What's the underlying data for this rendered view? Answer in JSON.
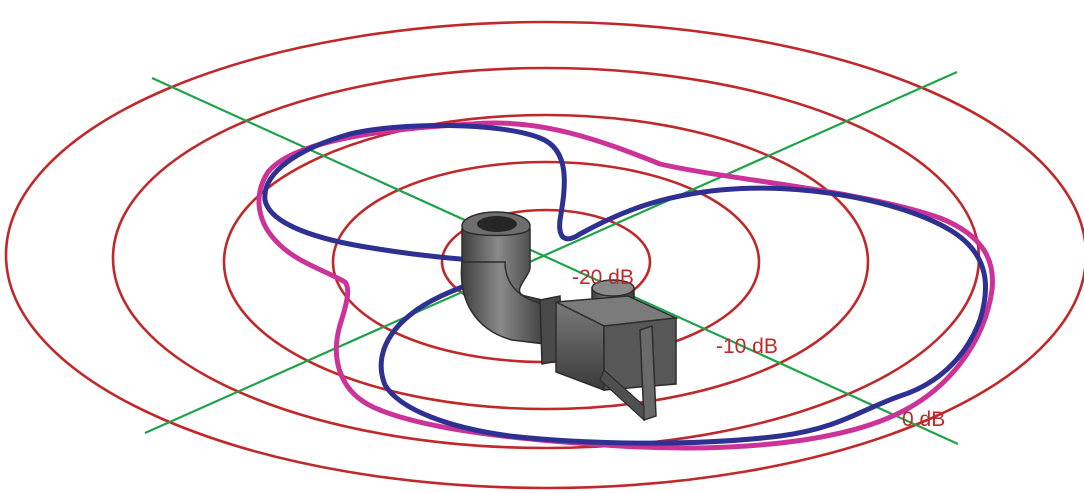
{
  "figure": {
    "background": "#ffffff",
    "colors": {
      "rings": "#c0282a",
      "axes": "#1fa24a",
      "pattern_a": "#cc3399",
      "pattern_b": "#2e3192",
      "device": "#5a5a5a",
      "labels": "#c0282a"
    },
    "ring_labels": [
      {
        "text": "-20 dB"
      },
      {
        "text": "-10 dB"
      },
      {
        "text": "0 dB"
      }
    ],
    "rings_count": 5,
    "object_icon": "elbow-pipe-antenna-model"
  }
}
